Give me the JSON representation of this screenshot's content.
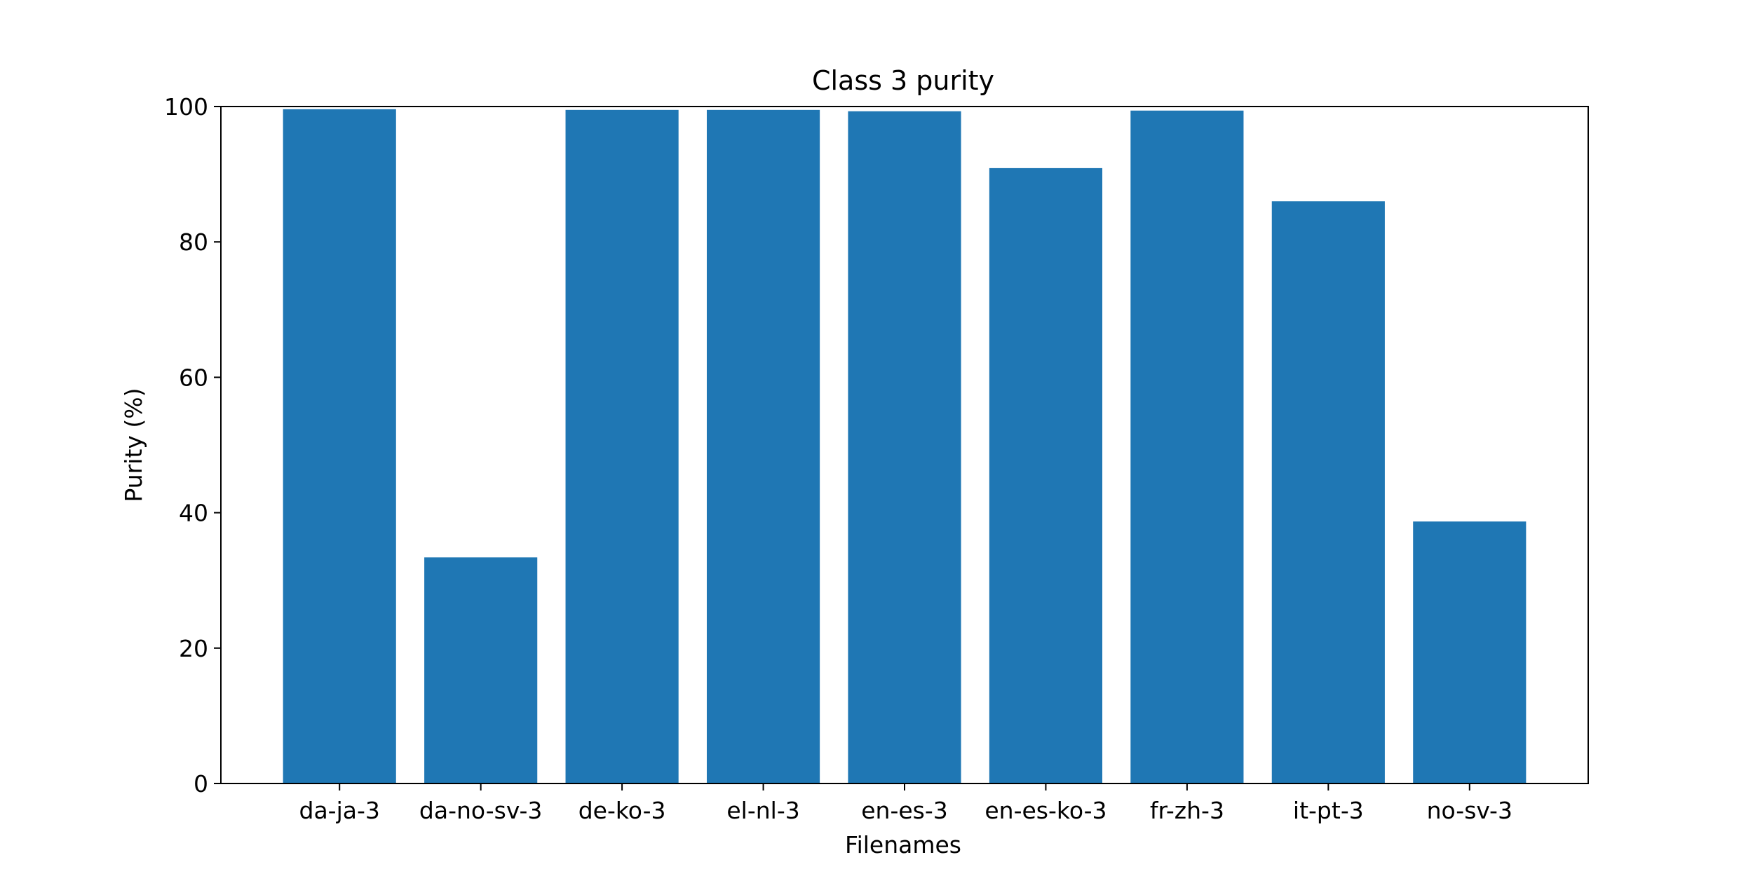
{
  "chart_data": {
    "type": "bar",
    "title": "Class 3 purity",
    "xlabel": "Filenames",
    "ylabel": "Purity (%)",
    "categories": [
      "da-ja-3",
      "da-no-sv-3",
      "de-ko-3",
      "el-nl-3",
      "en-es-3",
      "en-es-ko-3",
      "fr-zh-3",
      "it-pt-3",
      "no-sv-3"
    ],
    "values": [
      99.6,
      33.4,
      99.5,
      99.5,
      99.3,
      90.9,
      99.4,
      86.0,
      38.7
    ],
    "ylim": [
      0,
      100
    ],
    "yticks": [
      0,
      20,
      40,
      60,
      80,
      100
    ],
    "bar_color": "#1f77b4",
    "grid": false,
    "legend": "none"
  }
}
